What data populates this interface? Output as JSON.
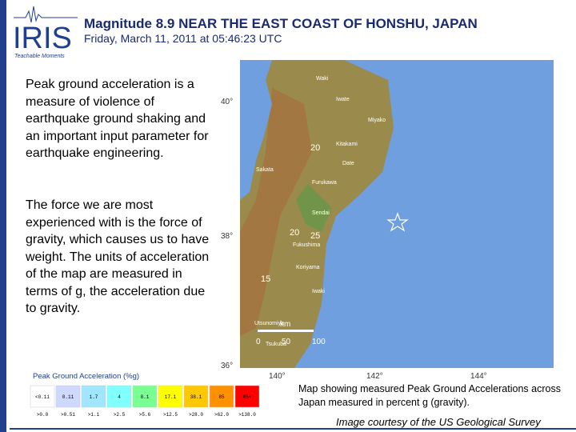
{
  "header": {
    "logo": "IRIS",
    "logo_tagline": "Teachable Moments",
    "title": "Magnitude 8.9 NEAR THE EAST COAST OF HONSHU, JAPAN",
    "subtitle": "Friday,  March 11, 2011 at 05:46:23 UTC"
  },
  "body": {
    "paragraphs": [
      "Peak ground acceleration is a measure of violence of earthquake ground shaking and an important input parameter for earthquake engineering.",
      "The force we are most experienced with is the force of gravity, which causes us to have weight. The units of acceleration of the map are measured in terms of g, the acceleration due to gravity."
    ]
  },
  "map": {
    "lat_labels": [
      "40°",
      "38°",
      "36°"
    ],
    "lon_labels": [
      "140°",
      "142°",
      "144°"
    ],
    "places": [
      "Waki",
      "Iwate",
      "Miyako",
      "Kitakami",
      "Date",
      "Sakata",
      "Furukawa",
      "Sendai",
      "Fukushima",
      "Koriyama",
      "Iwaki",
      "Utsunomiya",
      "Tsukuba"
    ],
    "contours": [
      "20",
      "20",
      "25",
      "15"
    ],
    "scale": {
      "unit": "km",
      "ticks": [
        "0",
        "50",
        "100"
      ]
    }
  },
  "legend": {
    "title": "Peak Ground Acceleration (%g)",
    "top_labels": [
      "<0.11",
      "0.11",
      "1.7",
      "4",
      "8.1",
      "17.1",
      "38.1",
      "85",
      "85+"
    ],
    "bottom_labels": [
      ">0.0",
      ">0.51",
      ">1.1",
      ">2.5",
      ">5.6",
      ">12.5",
      ">28.0",
      ">62.0",
      ">138.0"
    ]
  },
  "caption": "Map showing measured Peak Ground Accelerations across Japan measured in percent g (gravity).",
  "credit": "Image courtesy of the US Geological Survey"
}
